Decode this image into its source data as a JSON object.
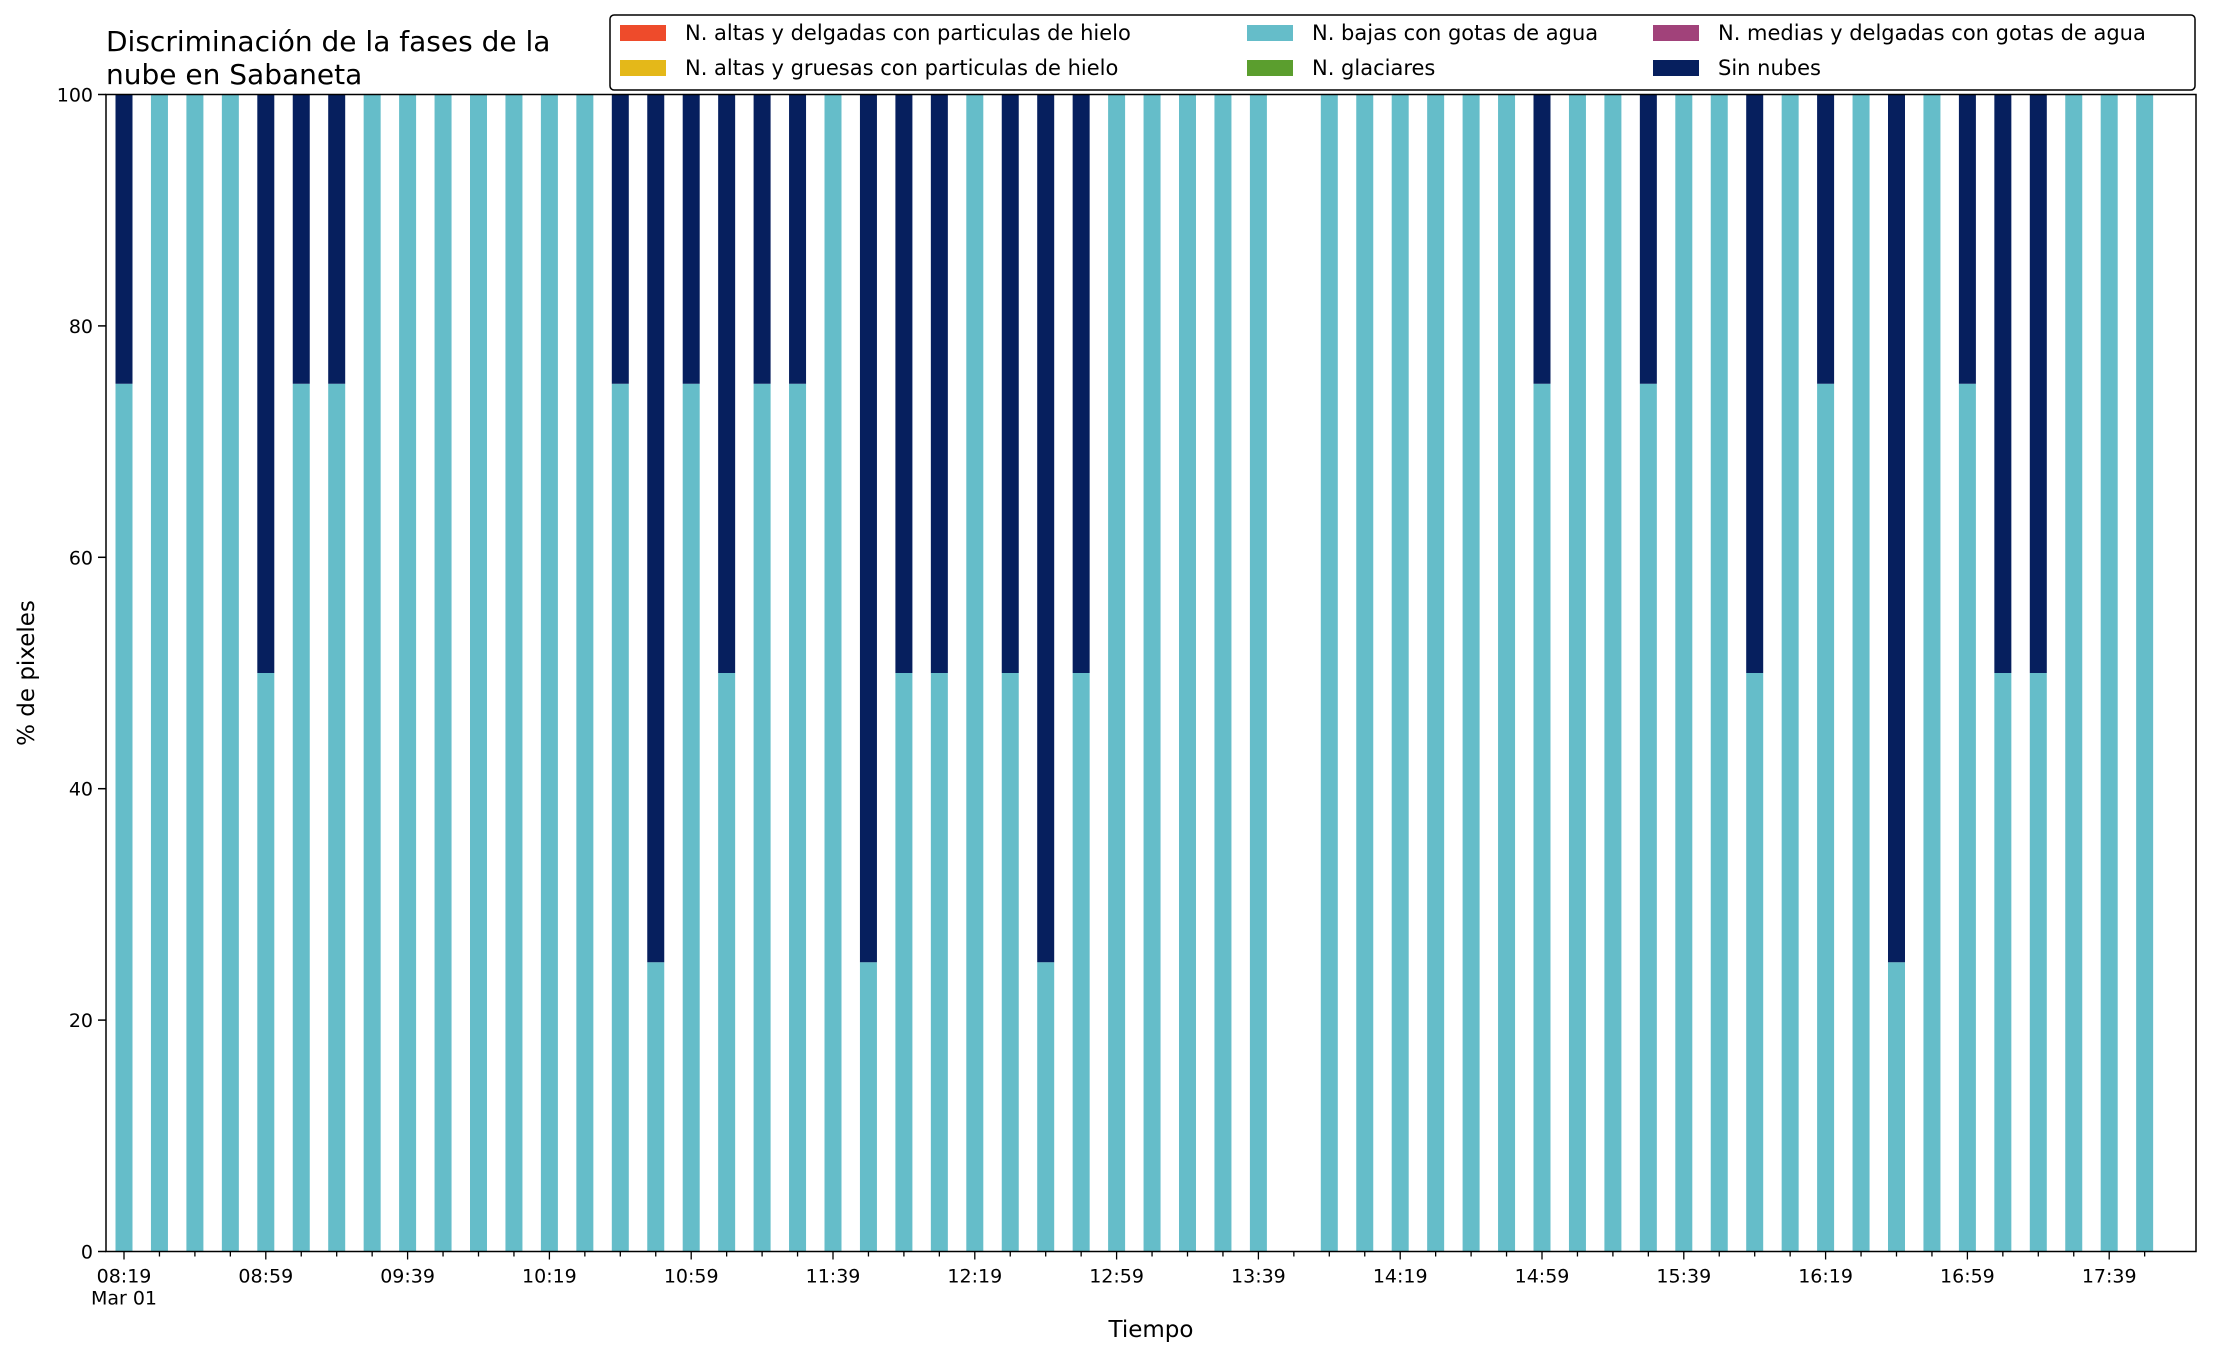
{
  "chart_data": {
    "type": "bar",
    "stacked": true,
    "title_lines": [
      "Discriminación de la fases de la",
      "nube en Sabaneta"
    ],
    "xlabel": "Tiempo",
    "ylabel": "% de pixeles",
    "ylim": [
      0,
      100
    ],
    "yticks": [
      0,
      20,
      40,
      60,
      80,
      100
    ],
    "grid": false,
    "legend_position": "top-right",
    "xtick_labels": [
      "08:19",
      "08:59",
      "09:39",
      "10:19",
      "10:59",
      "11:39",
      "12:19",
      "12:59",
      "13:39",
      "14:19",
      "14:59",
      "15:39",
      "16:19",
      "16:59",
      "17:39"
    ],
    "xtick_sublabel": "Mar 01",
    "legend": [
      {
        "label": "N. altas y delgadas con particulas de hielo",
        "color": "#ee4b2b"
      },
      {
        "label": "N. altas y gruesas con particulas de hielo",
        "color": "#e4b819"
      },
      {
        "label": "N. bajas con gotas de agua",
        "color": "#65bdc9"
      },
      {
        "label": "N. glaciares",
        "color": "#5b9e2e"
      },
      {
        "label": "N. medias y delgadas con gotas de agua",
        "color": "#a1427a"
      },
      {
        "label": "Sin nubes",
        "color": "#061f5e"
      }
    ],
    "time_slots": [
      "08:19",
      "08:29",
      "08:39",
      "08:49",
      "08:59",
      "09:09",
      "09:19",
      "09:29",
      "09:39",
      "09:49",
      "09:59",
      "10:09",
      "10:19",
      "10:29",
      "10:39",
      "10:49",
      "10:59",
      "11:09",
      "11:19",
      "11:29",
      "11:39",
      "11:49",
      "11:59",
      "12:09",
      "12:19",
      "12:29",
      "12:39",
      "12:49",
      "12:59",
      "13:09",
      "13:19",
      "13:29",
      "13:39",
      "13:49",
      "13:59",
      "14:09",
      "14:19",
      "14:29",
      "14:39",
      "14:49",
      "14:59",
      "15:09",
      "15:19",
      "15:29",
      "15:39",
      "15:49",
      "15:59",
      "16:09",
      "16:19",
      "16:29",
      "16:39",
      "16:49",
      "16:59",
      "17:09",
      "17:19",
      "17:29",
      "17:39",
      "17:49"
    ],
    "series": [
      {
        "name": "N. bajas con gotas de agua",
        "color": "#65bdc9",
        "values": [
          75,
          100,
          100,
          100,
          50,
          75,
          75,
          100,
          100,
          100,
          100,
          100,
          100,
          100,
          75,
          25,
          75,
          50,
          75,
          75,
          100,
          25,
          50,
          50,
          100,
          50,
          25,
          50,
          100,
          100,
          100,
          100,
          100,
          null,
          100,
          100,
          100,
          100,
          100,
          100,
          75,
          100,
          100,
          75,
          100,
          100,
          50,
          100,
          75,
          100,
          25,
          100,
          75,
          50,
          50,
          100,
          100,
          100
        ]
      },
      {
        "name": "Sin nubes",
        "color": "#061f5e",
        "values": [
          25,
          0,
          0,
          0,
          50,
          25,
          25,
          0,
          0,
          0,
          0,
          0,
          0,
          0,
          25,
          75,
          25,
          50,
          25,
          25,
          0,
          75,
          50,
          50,
          0,
          50,
          75,
          50,
          0,
          0,
          0,
          0,
          0,
          null,
          0,
          0,
          0,
          0,
          0,
          0,
          25,
          0,
          0,
          25,
          0,
          0,
          50,
          0,
          25,
          0,
          75,
          0,
          25,
          50,
          50,
          0,
          0,
          0
        ]
      }
    ]
  }
}
